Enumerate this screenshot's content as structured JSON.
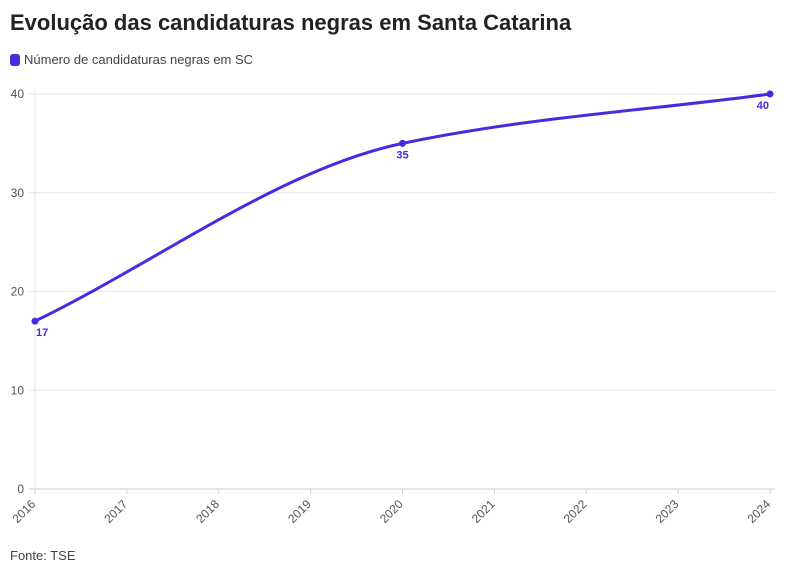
{
  "title": "Evolução das candidaturas negras em Santa Catarina",
  "source": "Fonte: TSE",
  "colors": {
    "series": "#4a2ae0",
    "grid": "#e6e6e6",
    "axis": "#cccccc"
  },
  "chart_data": {
    "type": "line",
    "title": "Evolução das candidaturas negras em Santa Catarina",
    "x": [
      2016,
      2017,
      2018,
      2019,
      2020,
      2021,
      2022,
      2023,
      2024
    ],
    "series": [
      {
        "name": "Número de candidaturas negras em SC",
        "points": [
          {
            "x": 2016,
            "y": 17
          },
          {
            "x": 2020,
            "y": 35
          },
          {
            "x": 2024,
            "y": 40
          }
        ]
      }
    ],
    "data_labels": [
      "17",
      "35",
      "40"
    ],
    "yticks": [
      0,
      10,
      20,
      30,
      40
    ],
    "xticks": [
      "2016",
      "2017",
      "2018",
      "2019",
      "2020",
      "2021",
      "2022",
      "2023",
      "2024"
    ],
    "ylim": [
      0,
      40
    ],
    "xlim": [
      2016,
      2024
    ],
    "grid": true,
    "legend": "top-left",
    "xlabel": "",
    "ylabel": ""
  }
}
